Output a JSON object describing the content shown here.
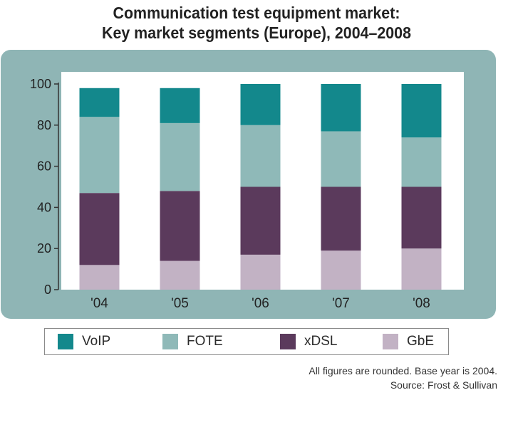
{
  "title_line1": "Communication test equipment market:",
  "title_line2": "Key market segments (Europe), 2004–2008",
  "note_rounding": "All figures are rounded. Base year is 2004.",
  "note_source": "Source: Frost & Sullivan",
  "colors": {
    "frame": "#8fb5b5",
    "plot_bg": "#ffffff",
    "VoIP": "#13888c",
    "FOTE": "#8fb9b8",
    "xDSL": "#5b3a5c",
    "GbE": "#c2b2c4"
  },
  "legend": [
    {
      "label": "VoIP",
      "color": "#13888c"
    },
    {
      "label": "FOTE",
      "color": "#8fb9b8"
    },
    {
      "label": "xDSL",
      "color": "#5b3a5c"
    },
    {
      "label": "GbE",
      "color": "#c2b2c4"
    }
  ],
  "chart_data": {
    "type": "bar",
    "stacked": true,
    "title": "Communication test equipment market: Key market segments (Europe), 2004–2008",
    "xlabel": "",
    "ylabel": "",
    "categories": [
      "'04",
      "'05",
      "'06",
      "'07",
      "'08"
    ],
    "ylim": [
      0,
      100
    ],
    "yticks": [
      0,
      20,
      40,
      60,
      80,
      100
    ],
    "series": [
      {
        "name": "GbE",
        "values": [
          12,
          14,
          17,
          19,
          20
        ]
      },
      {
        "name": "xDSL",
        "values": [
          35,
          34,
          33,
          31,
          30
        ]
      },
      {
        "name": "FOTE",
        "values": [
          37,
          33,
          30,
          27,
          24
        ]
      },
      {
        "name": "VoIP",
        "values": [
          14,
          17,
          20,
          23,
          26
        ]
      }
    ],
    "legend_position": "bottom",
    "grid": false
  }
}
